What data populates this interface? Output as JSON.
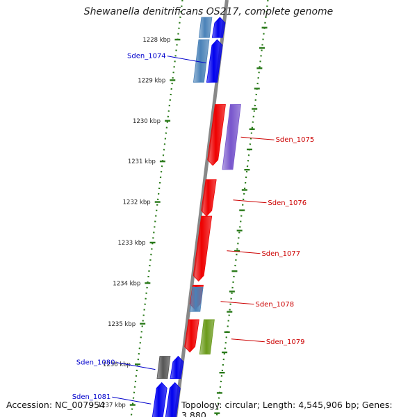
{
  "title": "Shewanella denitrificans OS217, complete genome",
  "footer": {
    "accession": "Accession: NC_007954",
    "summary": "Topology: circular; Length: 4,545,906 bp; Genes: 3,880"
  },
  "colors": {
    "forward_gene": "#0000ee",
    "reverse_gene": "#ee0000",
    "blue_grey_gene": "#4a82b8",
    "purple_gene": "#7755cc",
    "olive_gene": "#6a9a1a",
    "grey_gene": "#555555",
    "tick_green": "#2a7a1a",
    "backbone": "#888888",
    "forward_label": "#0000cc",
    "reverse_label": "#cc0000"
  },
  "ticks": [
    {
      "label": "1228 kbp"
    },
    {
      "label": "1229 kbp"
    },
    {
      "label": "1230 kbp"
    },
    {
      "label": "1231 kbp"
    },
    {
      "label": "1232 kbp"
    },
    {
      "label": "1233 kbp"
    },
    {
      "label": "1234 kbp"
    },
    {
      "label": "1235 kbp"
    },
    {
      "label": "1236 kbp"
    },
    {
      "label": "1237 kbp"
    }
  ],
  "genes": [
    {
      "name": "",
      "color": "blue_grey_gene",
      "strand": "left",
      "start_kbp": 1227.45,
      "end_kbp": 1227.95
    },
    {
      "name": "",
      "color": "forward_gene",
      "strand": "left",
      "start_kbp": 1227.45,
      "end_kbp": 1227.95
    },
    {
      "name": "",
      "color": "blue_grey_gene",
      "strand": "left",
      "start_kbp": 1228.0,
      "end_kbp": 1229.05
    },
    {
      "name": "Sden_1074",
      "color": "forward_gene",
      "strand": "left",
      "start_kbp": 1228.0,
      "end_kbp": 1229.05
    },
    {
      "name": "Sden_1075",
      "color": "reverse_gene",
      "strand": "right",
      "start_kbp": 1229.6,
      "end_kbp": 1231.1
    },
    {
      "name": "",
      "color": "purple_gene",
      "strand": "right",
      "start_kbp": 1229.6,
      "end_kbp": 1231.2
    },
    {
      "name": "Sden_1076",
      "color": "reverse_gene",
      "strand": "right",
      "start_kbp": 1231.45,
      "end_kbp": 1232.35
    },
    {
      "name": "Sden_1077",
      "color": "reverse_gene",
      "strand": "right",
      "start_kbp": 1232.35,
      "end_kbp": 1233.95
    },
    {
      "name": "",
      "color": "reverse_gene",
      "strand": "right",
      "start_kbp": 1234.05,
      "end_kbp": 1234.65
    },
    {
      "name": "Sden_1078",
      "color": "blue_grey_gene",
      "strand": "right",
      "start_kbp": 1234.1,
      "end_kbp": 1234.7
    },
    {
      "name": "",
      "color": "reverse_gene",
      "strand": "right",
      "start_kbp": 1234.9,
      "end_kbp": 1235.7
    },
    {
      "name": "Sden_1079",
      "color": "olive_gene",
      "strand": "right",
      "start_kbp": 1234.9,
      "end_kbp": 1235.75
    },
    {
      "name": "Sden_1080",
      "color": "grey_gene",
      "strand": "left",
      "start_kbp": 1235.8,
      "end_kbp": 1236.35
    },
    {
      "name": "",
      "color": "forward_gene",
      "strand": "left",
      "start_kbp": 1235.8,
      "end_kbp": 1236.35
    },
    {
      "name": "Sden_1081",
      "color": "forward_gene",
      "strand": "left",
      "start_kbp": 1236.45,
      "end_kbp": 1237.4
    },
    {
      "name": "",
      "color": "forward_gene",
      "strand": "left",
      "start_kbp": 1236.45,
      "end_kbp": 1237.4
    }
  ]
}
